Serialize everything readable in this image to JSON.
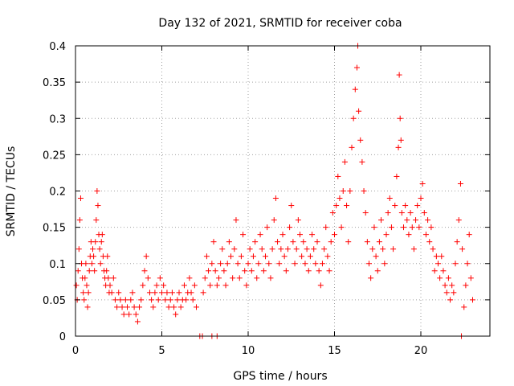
{
  "chart_data": {
    "type": "scatter",
    "title": "Day 132 of 2021, SRMTID for receiver coba",
    "xlabel": "GPS time / hours",
    "ylabel": "SRMTID / TECUs",
    "xlim": [
      0,
      24
    ],
    "ylim": [
      0,
      0.4
    ],
    "x_ticks": [
      0,
      5,
      10,
      15,
      20
    ],
    "x_tick_labels": [
      "0",
      "5",
      "10",
      "15",
      "20"
    ],
    "y_ticks": [
      0,
      0.05,
      0.1,
      0.15,
      0.2,
      0.25,
      0.3,
      0.35,
      0.4
    ],
    "y_tick_labels": [
      "0",
      "0.05",
      "0.1",
      "0.15",
      "0.2",
      "0.25",
      "0.3",
      "0.35",
      "0.4"
    ],
    "grid": true,
    "marker": "+",
    "color": "#ff0000",
    "series": [
      {
        "name": "SRMTID",
        "points": [
          [
            0.05,
            0.07
          ],
          [
            0.1,
            0.05
          ],
          [
            0.15,
            0.09
          ],
          [
            0.2,
            0.12
          ],
          [
            0.25,
            0.16
          ],
          [
            0.3,
            0.19
          ],
          [
            0.35,
            0.1
          ],
          [
            0.4,
            0.08
          ],
          [
            0.45,
            0.06
          ],
          [
            0.5,
            0.05
          ],
          [
            0.55,
            0.08
          ],
          [
            0.6,
            0.1
          ],
          [
            0.65,
            0.07
          ],
          [
            0.7,
            0.04
          ],
          [
            0.75,
            0.06
          ],
          [
            0.8,
            0.09
          ],
          [
            0.85,
            0.11
          ],
          [
            0.9,
            0.13
          ],
          [
            0.95,
            0.1
          ],
          [
            1.0,
            0.12
          ],
          [
            1.05,
            0.11
          ],
          [
            1.1,
            0.09
          ],
          [
            1.15,
            0.13
          ],
          [
            1.2,
            0.16
          ],
          [
            1.25,
            0.2
          ],
          [
            1.3,
            0.18
          ],
          [
            1.35,
            0.14
          ],
          [
            1.4,
            0.12
          ],
          [
            1.45,
            0.1
          ],
          [
            1.5,
            0.13
          ],
          [
            1.55,
            0.14
          ],
          [
            1.6,
            0.11
          ],
          [
            1.65,
            0.09
          ],
          [
            1.7,
            0.08
          ],
          [
            1.75,
            0.07
          ],
          [
            1.8,
            0.09
          ],
          [
            1.85,
            0.11
          ],
          [
            1.9,
            0.08
          ],
          [
            1.95,
            0.06
          ],
          [
            2.0,
            0.07
          ],
          [
            2.1,
            0.06
          ],
          [
            2.2,
            0.08
          ],
          [
            2.3,
            0.05
          ],
          [
            2.4,
            0.04
          ],
          [
            2.5,
            0.06
          ],
          [
            2.6,
            0.05
          ],
          [
            2.7,
            0.04
          ],
          [
            2.8,
            0.03
          ],
          [
            2.9,
            0.05
          ],
          [
            3.0,
            0.04
          ],
          [
            3.1,
            0.03
          ],
          [
            3.2,
            0.05
          ],
          [
            3.3,
            0.06
          ],
          [
            3.4,
            0.04
          ],
          [
            3.5,
            0.03
          ],
          [
            3.6,
            0.02
          ],
          [
            3.7,
            0.04
          ],
          [
            3.8,
            0.05
          ],
          [
            3.9,
            0.07
          ],
          [
            4.0,
            0.09
          ],
          [
            4.1,
            0.11
          ],
          [
            4.2,
            0.08
          ],
          [
            4.3,
            0.06
          ],
          [
            4.4,
            0.05
          ],
          [
            4.5,
            0.04
          ],
          [
            4.6,
            0.06
          ],
          [
            4.7,
            0.07
          ],
          [
            4.8,
            0.05
          ],
          [
            4.9,
            0.08
          ],
          [
            5.0,
            0.06
          ],
          [
            5.1,
            0.07
          ],
          [
            5.2,
            0.05
          ],
          [
            5.3,
            0.06
          ],
          [
            5.4,
            0.04
          ],
          [
            5.5,
            0.05
          ],
          [
            5.6,
            0.06
          ],
          [
            5.7,
            0.04
          ],
          [
            5.8,
            0.03
          ],
          [
            5.9,
            0.05
          ],
          [
            6.0,
            0.06
          ],
          [
            6.1,
            0.04
          ],
          [
            6.2,
            0.05
          ],
          [
            6.3,
            0.07
          ],
          [
            6.4,
            0.05
          ],
          [
            6.5,
            0.06
          ],
          [
            6.6,
            0.08
          ],
          [
            6.7,
            0.06
          ],
          [
            6.8,
            0.05
          ],
          [
            6.9,
            0.07
          ],
          [
            7.0,
            0.04
          ],
          [
            7.4,
            0.06
          ],
          [
            7.5,
            0.08
          ],
          [
            7.6,
            0.11
          ],
          [
            7.7,
            0.09
          ],
          [
            7.8,
            0.07
          ],
          [
            7.9,
            0.1
          ],
          [
            8.0,
            0.13
          ],
          [
            8.1,
            0.09
          ],
          [
            8.2,
            0.07
          ],
          [
            8.3,
            0.08
          ],
          [
            8.4,
            0.1
          ],
          [
            8.5,
            0.12
          ],
          [
            8.6,
            0.09
          ],
          [
            8.7,
            0.07
          ],
          [
            8.8,
            0.1
          ],
          [
            8.9,
            0.13
          ],
          [
            9.0,
            0.11
          ],
          [
            9.1,
            0.08
          ],
          [
            9.2,
            0.12
          ],
          [
            9.3,
            0.16
          ],
          [
            9.4,
            0.1
          ],
          [
            9.5,
            0.08
          ],
          [
            9.6,
            0.11
          ],
          [
            9.7,
            0.14
          ],
          [
            9.8,
            0.09
          ],
          [
            9.9,
            0.07
          ],
          [
            10.0,
            0.1
          ],
          [
            10.1,
            0.12
          ],
          [
            10.2,
            0.09
          ],
          [
            10.3,
            0.11
          ],
          [
            10.4,
            0.13
          ],
          [
            10.5,
            0.08
          ],
          [
            10.6,
            0.1
          ],
          [
            10.7,
            0.14
          ],
          [
            10.8,
            0.12
          ],
          [
            10.9,
            0.09
          ],
          [
            11.0,
            0.11
          ],
          [
            11.1,
            0.15
          ],
          [
            11.2,
            0.1
          ],
          [
            11.3,
            0.08
          ],
          [
            11.4,
            0.12
          ],
          [
            11.5,
            0.16
          ],
          [
            11.6,
            0.19
          ],
          [
            11.7,
            0.13
          ],
          [
            11.8,
            0.1
          ],
          [
            11.9,
            0.12
          ],
          [
            12.0,
            0.14
          ],
          [
            12.1,
            0.11
          ],
          [
            12.2,
            0.09
          ],
          [
            12.3,
            0.12
          ],
          [
            12.4,
            0.15
          ],
          [
            12.5,
            0.18
          ],
          [
            12.6,
            0.13
          ],
          [
            12.7,
            0.1
          ],
          [
            12.8,
            0.12
          ],
          [
            12.9,
            0.16
          ],
          [
            13.0,
            0.14
          ],
          [
            13.1,
            0.11
          ],
          [
            13.2,
            0.13
          ],
          [
            13.3,
            0.1
          ],
          [
            13.4,
            0.12
          ],
          [
            13.5,
            0.09
          ],
          [
            13.6,
            0.11
          ],
          [
            13.7,
            0.14
          ],
          [
            13.8,
            0.12
          ],
          [
            13.9,
            0.1
          ],
          [
            14.0,
            0.13
          ],
          [
            14.1,
            0.09
          ],
          [
            14.2,
            0.07
          ],
          [
            14.3,
            0.1
          ],
          [
            14.4,
            0.12
          ],
          [
            14.5,
            0.15
          ],
          [
            14.6,
            0.11
          ],
          [
            14.7,
            0.09
          ],
          [
            14.8,
            0.13
          ],
          [
            14.9,
            0.17
          ],
          [
            15.0,
            0.14
          ],
          [
            15.1,
            0.18
          ],
          [
            15.2,
            0.22
          ],
          [
            15.3,
            0.19
          ],
          [
            15.4,
            0.15
          ],
          [
            15.5,
            0.2
          ],
          [
            15.6,
            0.24
          ],
          [
            15.7,
            0.18
          ],
          [
            15.8,
            0.13
          ],
          [
            15.9,
            0.2
          ],
          [
            16.0,
            0.26
          ],
          [
            16.1,
            0.3
          ],
          [
            16.2,
            0.34
          ],
          [
            16.3,
            0.37
          ],
          [
            16.35,
            0.4
          ],
          [
            16.4,
            0.31
          ],
          [
            16.5,
            0.27
          ],
          [
            16.6,
            0.24
          ],
          [
            16.7,
            0.2
          ],
          [
            16.8,
            0.17
          ],
          [
            16.9,
            0.13
          ],
          [
            17.0,
            0.1
          ],
          [
            17.1,
            0.08
          ],
          [
            17.2,
            0.12
          ],
          [
            17.3,
            0.15
          ],
          [
            17.4,
            0.11
          ],
          [
            17.5,
            0.09
          ],
          [
            17.6,
            0.13
          ],
          [
            17.7,
            0.16
          ],
          [
            17.8,
            0.12
          ],
          [
            17.9,
            0.1
          ],
          [
            18.0,
            0.14
          ],
          [
            18.1,
            0.17
          ],
          [
            18.2,
            0.19
          ],
          [
            18.3,
            0.15
          ],
          [
            18.4,
            0.12
          ],
          [
            18.5,
            0.18
          ],
          [
            18.6,
            0.22
          ],
          [
            18.7,
            0.26
          ],
          [
            18.75,
            0.36
          ],
          [
            18.8,
            0.3
          ],
          [
            18.85,
            0.27
          ],
          [
            18.9,
            0.17
          ],
          [
            19.0,
            0.15
          ],
          [
            19.1,
            0.18
          ],
          [
            19.2,
            0.16
          ],
          [
            19.3,
            0.14
          ],
          [
            19.4,
            0.17
          ],
          [
            19.5,
            0.15
          ],
          [
            19.6,
            0.12
          ],
          [
            19.7,
            0.16
          ],
          [
            19.8,
            0.18
          ],
          [
            19.9,
            0.15
          ],
          [
            20.0,
            0.19
          ],
          [
            20.1,
            0.21
          ],
          [
            20.2,
            0.17
          ],
          [
            20.3,
            0.14
          ],
          [
            20.4,
            0.16
          ],
          [
            20.5,
            0.13
          ],
          [
            20.6,
            0.15
          ],
          [
            20.7,
            0.12
          ],
          [
            20.8,
            0.09
          ],
          [
            20.9,
            0.11
          ],
          [
            21.0,
            0.1
          ],
          [
            21.1,
            0.08
          ],
          [
            21.2,
            0.11
          ],
          [
            21.3,
            0.09
          ],
          [
            21.4,
            0.07
          ],
          [
            21.5,
            0.06
          ],
          [
            21.6,
            0.08
          ],
          [
            21.7,
            0.05
          ],
          [
            21.8,
            0.07
          ],
          [
            21.9,
            0.06
          ],
          [
            22.0,
            0.1
          ],
          [
            22.1,
            0.13
          ],
          [
            22.2,
            0.16
          ],
          [
            22.3,
            0.21
          ],
          [
            22.4,
            0.12
          ],
          [
            22.5,
            0.04
          ],
          [
            22.6,
            0.07
          ],
          [
            22.7,
            0.1
          ],
          [
            22.8,
            0.14
          ],
          [
            22.9,
            0.08
          ],
          [
            23.0,
            0.05
          ]
        ]
      }
    ],
    "zero_markers": [
      7.2,
      7.35,
      7.9,
      8.2,
      22.35
    ]
  }
}
